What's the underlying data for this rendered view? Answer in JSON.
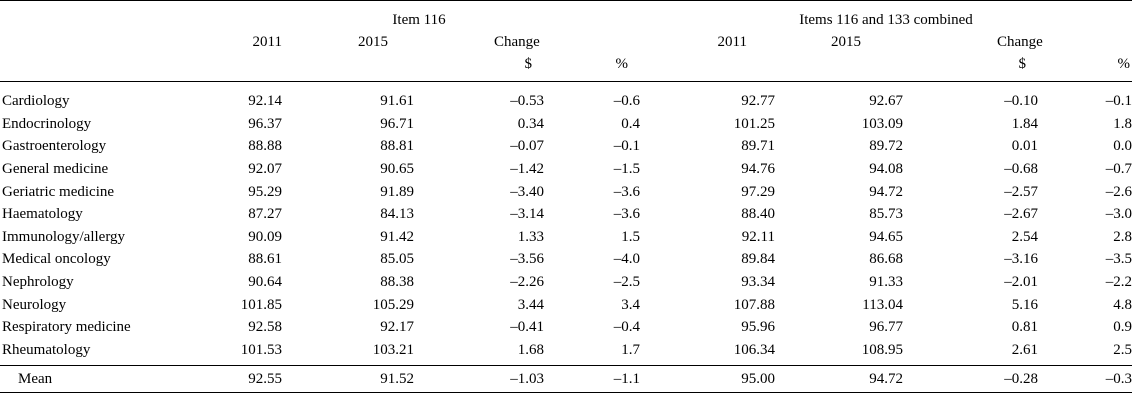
{
  "header": {
    "group1": "Item 116",
    "group2": "Items 116 and 133 combined",
    "year_a": "2011",
    "year_b": "2015",
    "change": "Change",
    "unit_dollar": "$",
    "unit_percent": "%"
  },
  "rows": [
    {
      "label": "Cardiology",
      "v": [
        "92.14",
        "91.61",
        "–0.53",
        "–0.6",
        "92.77",
        "92.67",
        "–0.10",
        "–0.1"
      ]
    },
    {
      "label": "Endocrinology",
      "v": [
        "96.37",
        "96.71",
        "0.34",
        "0.4",
        "101.25",
        "103.09",
        "1.84",
        "1.8"
      ]
    },
    {
      "label": "Gastroenterology",
      "v": [
        "88.88",
        "88.81",
        "–0.07",
        "–0.1",
        "89.71",
        "89.72",
        "0.01",
        "0.0"
      ]
    },
    {
      "label": "General medicine",
      "v": [
        "92.07",
        "90.65",
        "–1.42",
        "–1.5",
        "94.76",
        "94.08",
        "–0.68",
        "–0.7"
      ]
    },
    {
      "label": "Geriatric medicine",
      "v": [
        "95.29",
        "91.89",
        "–3.40",
        "–3.6",
        "97.29",
        "94.72",
        "–2.57",
        "–2.6"
      ]
    },
    {
      "label": "Haematology",
      "v": [
        "87.27",
        "84.13",
        "–3.14",
        "–3.6",
        "88.40",
        "85.73",
        "–2.67",
        "–3.0"
      ]
    },
    {
      "label": "Immunology/allergy",
      "v": [
        "90.09",
        "91.42",
        "1.33",
        "1.5",
        "92.11",
        "94.65",
        "2.54",
        "2.8"
      ]
    },
    {
      "label": "Medical oncology",
      "v": [
        "88.61",
        "85.05",
        "–3.56",
        "–4.0",
        "89.84",
        "86.68",
        "–3.16",
        "–3.5"
      ]
    },
    {
      "label": "Nephrology",
      "v": [
        "90.64",
        "88.38",
        "–2.26",
        "–2.5",
        "93.34",
        "91.33",
        "–2.01",
        "–2.2"
      ]
    },
    {
      "label": "Neurology",
      "v": [
        "101.85",
        "105.29",
        "3.44",
        "3.4",
        "107.88",
        "113.04",
        "5.16",
        "4.8"
      ]
    },
    {
      "label": "Respiratory medicine",
      "v": [
        "92.58",
        "92.17",
        "–0.41",
        "–0.4",
        "95.96",
        "96.77",
        "0.81",
        "0.9"
      ]
    },
    {
      "label": "Rheumatology",
      "v": [
        "101.53",
        "103.21",
        "1.68",
        "1.7",
        "106.34",
        "108.95",
        "2.61",
        "2.5"
      ]
    }
  ],
  "mean": {
    "label": "Mean",
    "v": [
      "92.55",
      "91.52",
      "–1.03",
      "–1.1",
      "95.00",
      "94.72",
      "–0.28",
      "–0.3"
    ]
  }
}
